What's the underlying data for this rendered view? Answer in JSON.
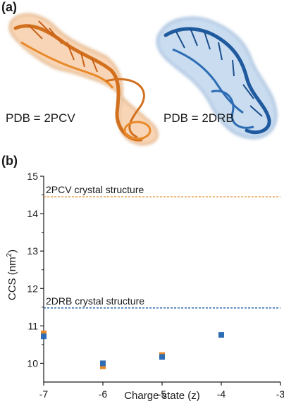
{
  "panel_a": {
    "label": "(a)",
    "structures": [
      {
        "pdb_text": "PDB = 2PCV",
        "color": "#E8892A"
      },
      {
        "pdb_text": "PDB = 2DRB",
        "color": "#2E6DB4"
      }
    ]
  },
  "panel_b": {
    "label": "(b)"
  },
  "chart_data": {
    "type": "scatter",
    "xlabel": "Charge state (z)",
    "ylabel_main": "CCS (nm",
    "ylabel_sup": "2",
    "ylabel_tail": ")",
    "xlim": [
      -7,
      -3
    ],
    "ylim": [
      9.5,
      15
    ],
    "xticks": [
      -7,
      -6,
      -5,
      -4,
      -3
    ],
    "xtick_labels": [
      "-7",
      "-6",
      "-5",
      "-4",
      "-3"
    ],
    "yticks": [
      10,
      11,
      12,
      13,
      14,
      15
    ],
    "ytick_labels": [
      "10",
      "11",
      "12",
      "13",
      "14",
      "15"
    ],
    "grid": false,
    "reference_lines": [
      {
        "label": "2PCV crystal structure",
        "y": 14.45,
        "color": "#E8892A"
      },
      {
        "label": "2DRB crystal structure",
        "y": 11.48,
        "color": "#2E6DB4"
      }
    ],
    "series": [
      {
        "color": "#E8892A",
        "marker": "square",
        "x": [
          -7,
          -6,
          -5
        ],
        "y": [
          10.8,
          9.92,
          10.22
        ]
      },
      {
        "color": "#2E6DB4",
        "marker": "square",
        "x": [
          -7,
          -6,
          -5,
          -4
        ],
        "y": [
          10.72,
          10.0,
          10.17,
          10.76
        ]
      }
    ]
  }
}
